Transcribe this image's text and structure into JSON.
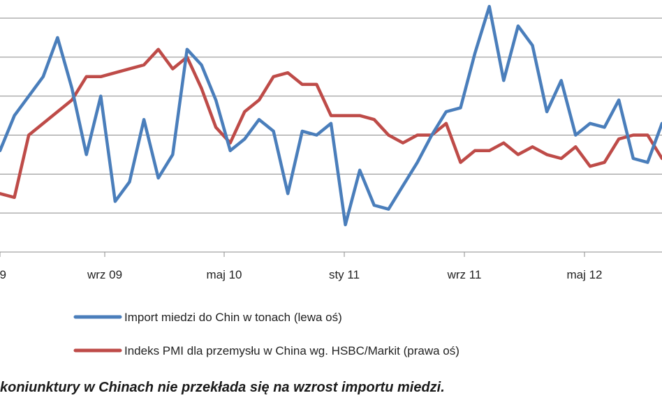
{
  "chart_data": {
    "type": "line",
    "x_ticks": [
      "9",
      "wrz 09",
      "maj 10",
      "sty 11",
      "wrz 11",
      "maj 12"
    ],
    "y_gridlines": [
      0,
      1,
      2,
      3,
      4,
      5,
      6
    ],
    "y_left_range": [
      0,
      6
    ],
    "y_right_range": [
      0,
      6
    ],
    "grid": "horizontal",
    "legend_position": "bottom",
    "series": [
      {
        "name": "Import miedzi do Chin w tonach (lewa oś)",
        "axis": "left",
        "color": "#4a7ebb",
        "x": [
          0,
          1,
          2,
          3,
          4,
          5,
          6,
          7,
          8,
          9,
          10,
          11,
          12,
          13,
          14,
          15,
          16,
          17,
          18,
          19,
          20,
          21,
          22,
          23,
          24,
          25,
          26,
          27,
          28,
          29,
          30,
          31,
          32,
          33,
          34,
          35,
          36,
          37,
          38,
          39,
          40,
          41,
          42,
          43,
          44,
          45,
          46
        ],
        "values": [
          2.6,
          3.5,
          4.0,
          4.5,
          5.5,
          4.2,
          2.5,
          4.0,
          1.3,
          1.8,
          3.4,
          1.9,
          2.5,
          5.2,
          4.8,
          3.9,
          2.6,
          2.9,
          3.4,
          3.1,
          1.5,
          3.1,
          3.0,
          3.3,
          0.7,
          2.1,
          1.2,
          1.1,
          1.7,
          2.3,
          3.0,
          3.6,
          3.7,
          5.1,
          6.3,
          4.4,
          5.8,
          5.3,
          3.6,
          4.4,
          3.0,
          3.3,
          3.2,
          3.9,
          2.4,
          2.3,
          3.3
        ]
      },
      {
        "name": "Indeks PMI dla przemysłu w China wg. HSBC/Markit (prawa oś)",
        "axis": "right",
        "color": "#be4b48",
        "x": [
          0,
          1,
          2,
          3,
          4,
          5,
          6,
          7,
          8,
          9,
          10,
          11,
          12,
          13,
          14,
          15,
          16,
          17,
          18,
          19,
          20,
          21,
          22,
          23,
          24,
          25,
          26,
          27,
          28,
          29,
          30,
          31,
          32,
          33,
          34,
          35,
          36,
          37,
          38,
          39,
          40,
          41,
          42,
          43,
          44,
          45,
          46
        ],
        "values": [
          1.5,
          1.4,
          3.0,
          3.3,
          3.6,
          3.9,
          4.5,
          4.5,
          4.6,
          4.7,
          4.8,
          5.2,
          4.7,
          5.0,
          4.2,
          3.2,
          2.8,
          3.6,
          3.9,
          4.5,
          4.6,
          4.3,
          4.3,
          3.5,
          3.5,
          3.5,
          3.4,
          3.0,
          2.8,
          3.0,
          3.0,
          3.3,
          2.3,
          2.6,
          2.6,
          2.8,
          2.5,
          2.7,
          2.5,
          2.4,
          2.7,
          2.2,
          2.3,
          2.9,
          3.0,
          3.0,
          2.4
        ]
      }
    ]
  },
  "caption": "koniunktury w Chinach nie przekłada się na wzrost importu miedzi."
}
